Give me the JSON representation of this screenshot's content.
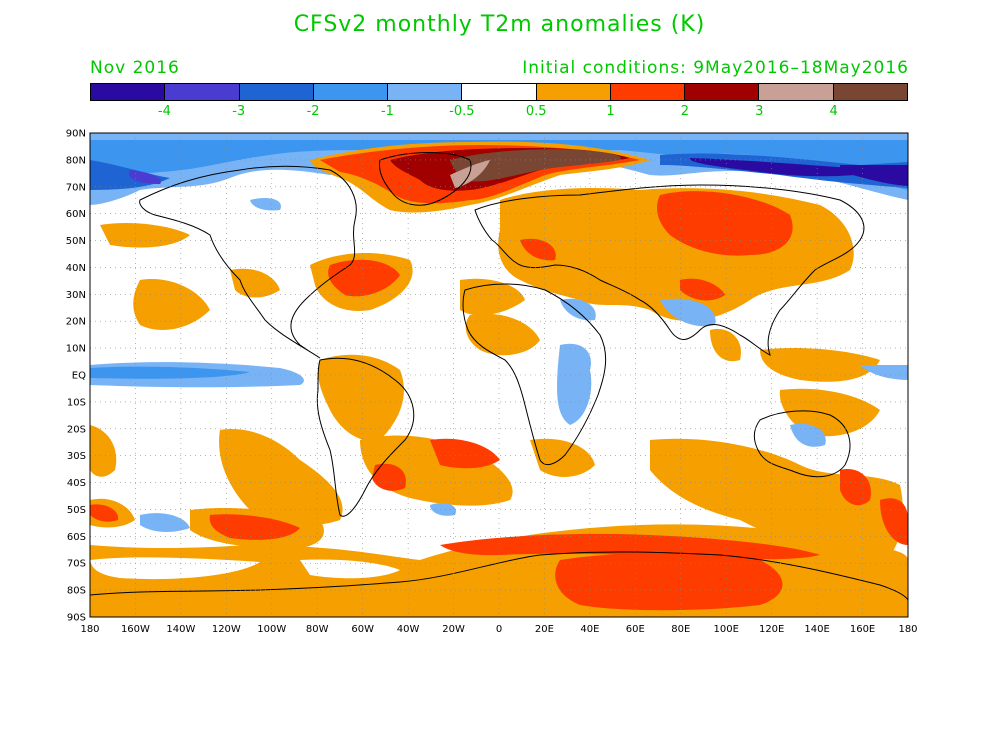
{
  "title": "CFSv2 monthly T2m anomalies (K)",
  "valid_month": "Nov 2016",
  "initial_conditions": "Initial conditions: 9May2016–18May2016",
  "colorbar": {
    "colors": [
      "#2a0aa0",
      "#4a3cd0",
      "#1e64d2",
      "#3c96f0",
      "#78b4f5",
      "#ffffff",
      "#f5a000",
      "#ff3c00",
      "#a00000",
      "#c8a096",
      "#784632"
    ],
    "labels": [
      "-4",
      "-3",
      "-2",
      "-1",
      "-0.5",
      "0.5",
      "1",
      "2",
      "3",
      "4"
    ]
  },
  "map": {
    "lat_labels": [
      "90N",
      "80N",
      "70N",
      "60N",
      "50N",
      "40N",
      "30N",
      "20N",
      "10N",
      "EQ",
      "10S",
      "20S",
      "30S",
      "40S",
      "50S",
      "60S",
      "70S",
      "80S",
      "90S"
    ],
    "lon_labels": [
      "180",
      "160W",
      "140W",
      "120W",
      "100W",
      "80W",
      "60W",
      "40W",
      "20W",
      "0",
      "20E",
      "40E",
      "60E",
      "80E",
      "100E",
      "120E",
      "140E",
      "160E",
      "180"
    ]
  }
}
